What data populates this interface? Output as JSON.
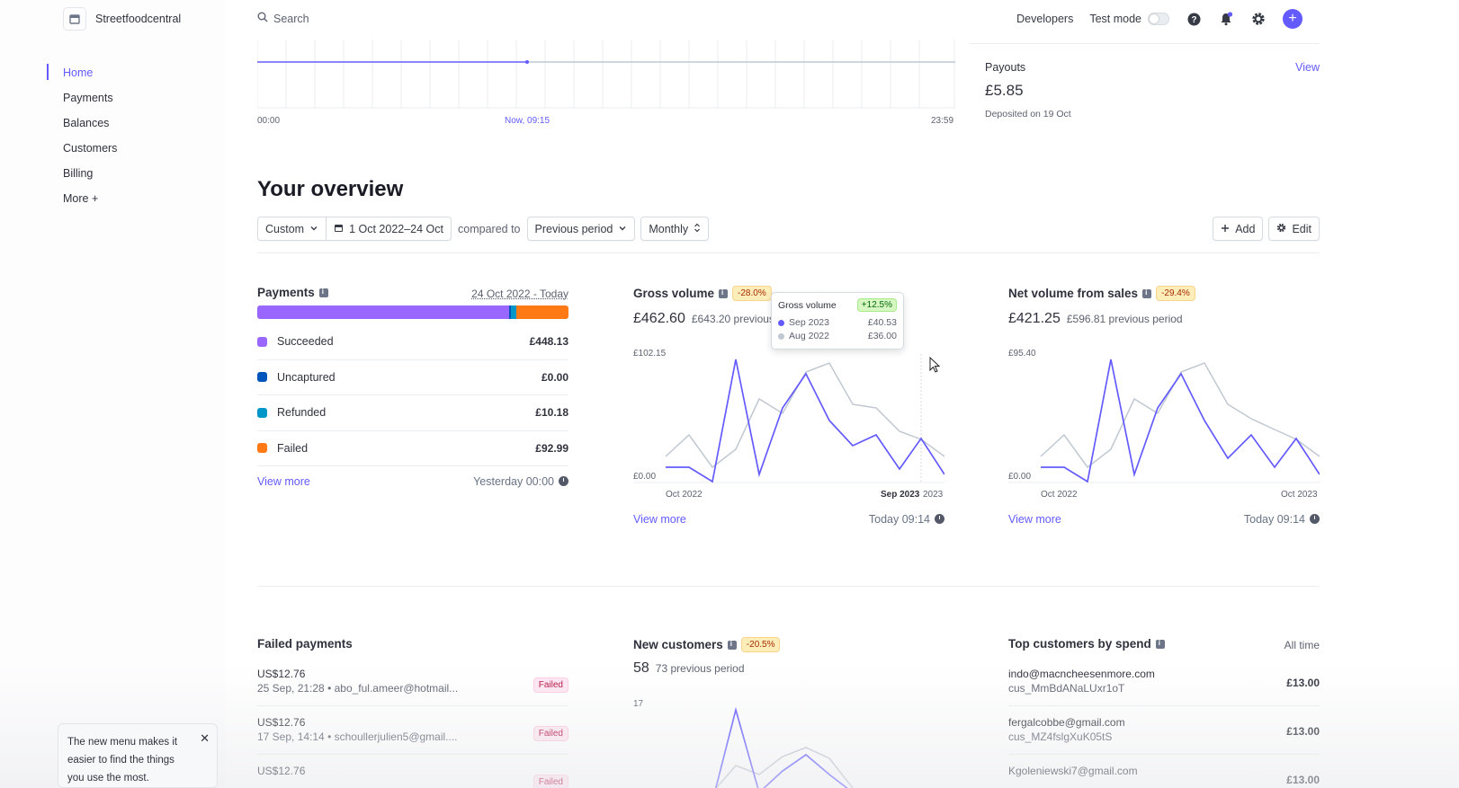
{
  "header": {
    "account_name": "Streetfoodcentral",
    "search_placeholder": "Search",
    "developers": "Developers",
    "test_mode": "Test mode"
  },
  "sidebar": {
    "items": [
      {
        "label": "Home",
        "active": true
      },
      {
        "label": "Payments"
      },
      {
        "label": "Balances"
      },
      {
        "label": "Customers"
      },
      {
        "label": "Billing"
      },
      {
        "label": "More +"
      }
    ]
  },
  "today": {
    "start": "00:00",
    "now": "Now, 09:15",
    "end": "23:59"
  },
  "payouts": {
    "title": "Payouts",
    "view": "View",
    "amount": "£5.85",
    "note": "Deposited on 19 Oct"
  },
  "overview": {
    "title": "Your overview",
    "range_type": "Custom",
    "date_range": "1 Oct 2022–24 Oct",
    "compared_to": "compared to",
    "comparison": "Previous period",
    "interval": "Monthly",
    "add": "Add",
    "edit": "Edit"
  },
  "payments_card": {
    "title": "Payments",
    "range": "24 Oct 2022 - Today",
    "rows": [
      {
        "label": "Succeeded",
        "value": "£448.13",
        "color": "#9966ff"
      },
      {
        "label": "Uncaptured",
        "value": "£0.00",
        "color": "#0055bc"
      },
      {
        "label": "Refunded",
        "value": "£10.18",
        "color": "#0096c7"
      },
      {
        "label": "Failed",
        "value": "£92.99",
        "color": "#ff7a14"
      }
    ],
    "view_more": "View more",
    "updated": "Yesterday 00:00"
  },
  "gross_volume": {
    "title": "Gross volume",
    "change": "-28.0%",
    "amount": "£462.60",
    "previous": "£643.20 previous",
    "y_max": "£102.15",
    "y_min": "£0.00",
    "x_start": "Oct 2022",
    "x_hover": "Sep 2023",
    "x_end": "2023",
    "view_more": "View more",
    "updated": "Today 09:14"
  },
  "tooltip": {
    "title": "Gross volume",
    "change": "+12.5%",
    "rows": [
      {
        "label": "Sep 2023",
        "value": "£40.53"
      },
      {
        "label": "Aug 2022",
        "value": "£36.00"
      }
    ]
  },
  "net_volume": {
    "title": "Net volume from sales",
    "change": "-29.4%",
    "amount": "£421.25",
    "previous": "£596.81 previous period",
    "y_max": "£95.40",
    "y_min": "£0.00",
    "x_start": "Oct 2022",
    "x_end": "Oct 2023",
    "view_more": "View more",
    "updated": "Today 09:14"
  },
  "failed_payments": {
    "title": "Failed payments",
    "rows": [
      {
        "amount": "US$12.76",
        "meta": "25 Sep, 21:28 • abo_ful.ameer@hotmail...",
        "status": "Failed"
      },
      {
        "amount": "US$12.76",
        "meta": "17 Sep, 14:14 • schoullerjulien5@gmail....",
        "status": "Failed"
      },
      {
        "amount": "US$12.76",
        "meta": "",
        "status": "Failed"
      }
    ]
  },
  "new_customers": {
    "title": "New customers",
    "change": "-20.5%",
    "count": "58",
    "previous": "73 previous period",
    "y_max": "17"
  },
  "top_customers": {
    "title": "Top customers by spend",
    "range": "All time",
    "rows": [
      {
        "email": "indo@macncheesenmore.com",
        "id": "cus_MmBdANaLUxr1oT",
        "amount": "£13.00"
      },
      {
        "email": "fergalcobbe@gmail.com",
        "id": "cus_MZ4fslgXuK05tS",
        "amount": "£13.00"
      },
      {
        "email": "Kgoleniewski7@gmail.com",
        "id": "",
        "amount": "£13.00"
      }
    ]
  },
  "toast": {
    "text": "The new menu makes it easier to find the things you use the most."
  },
  "colors": {
    "accent": "#635bff",
    "current_series": "#635bff",
    "previous_series": "#c0c8d2"
  }
}
